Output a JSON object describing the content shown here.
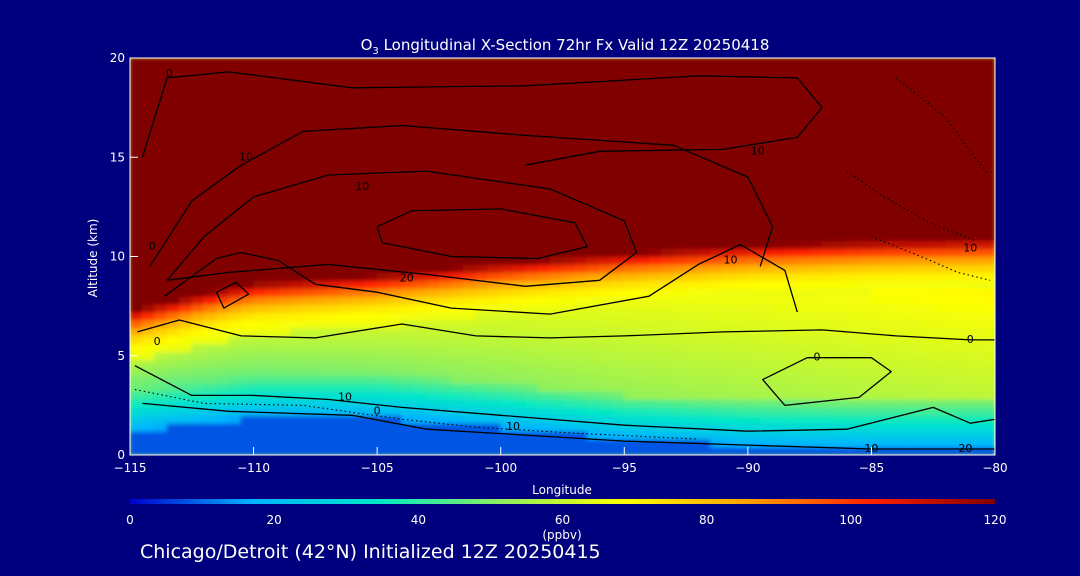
{
  "chart_data": {
    "type": "heatmap",
    "title_species": "O",
    "title_subscript": "3",
    "title_rest": " Longitudinal X-Section 72hr  Fx Valid 12Z 20250418",
    "xlabel": "Longitude",
    "ylabel": "Altitude (km)",
    "xlim": [
      -115,
      -80
    ],
    "ylim": [
      0,
      20
    ],
    "x_ticks": [
      "−115",
      "−110",
      "−105",
      "−100",
      "−95",
      "−90",
      "−85",
      "−80"
    ],
    "y_ticks": [
      "0",
      "5",
      "10",
      "15",
      "20"
    ],
    "colorbar": {
      "min": 0,
      "max": 120,
      "ticks": [
        "0",
        "20",
        "40",
        "60",
        "80",
        "100",
        "120"
      ],
      "unit": "(ppbv)",
      "colors": [
        "#0000cc",
        "#00b4ff",
        "#00e8c8",
        "#8cf060",
        "#ffff00",
        "#ffa000",
        "#ff2000",
        "#800000"
      ]
    },
    "ozone_field": {
      "description_free": true,
      "tropopause_km": [
        [
          -115,
          7.5
        ],
        [
          -112,
          8.4
        ],
        [
          -110,
          8.9
        ],
        [
          -105,
          9.3
        ],
        [
          -100,
          9.9
        ],
        [
          -95,
          10.4
        ],
        [
          -90,
          10.8
        ],
        [
          -85,
          11.0
        ],
        [
          -80,
          11.1
        ]
      ],
      "boundary_layer_top_km": [
        [
          -115,
          1.2
        ],
        [
          -110,
          1.9
        ],
        [
          -105,
          1.9
        ],
        [
          -100,
          1.4
        ],
        [
          -95,
          0.8
        ],
        [
          -90,
          0.5
        ],
        [
          -85,
          0.4
        ],
        [
          -80,
          0.4
        ]
      ],
      "background_ppbv": 60,
      "stratosphere_ppbv": 130
    },
    "contour_labels": [
      {
        "text": "0",
        "x": -113.4,
        "y": 19.2
      },
      {
        "text": "10",
        "x": -110.3,
        "y": 15.0
      },
      {
        "text": "10",
        "x": -105.6,
        "y": 13.5
      },
      {
        "text": "10",
        "x": -89.6,
        "y": 15.3
      },
      {
        "text": "0",
        "x": -114.1,
        "y": 10.5
      },
      {
        "text": "0",
        "x": -113.9,
        "y": 5.7
      },
      {
        "text": "20",
        "x": -103.8,
        "y": 8.9
      },
      {
        "text": "10",
        "x": -90.7,
        "y": 9.8
      },
      {
        "text": "10",
        "x": -81.0,
        "y": 10.4
      },
      {
        "text": "0",
        "x": -87.2,
        "y": 4.9
      },
      {
        "text": "0",
        "x": -81.0,
        "y": 5.8
      },
      {
        "text": "10",
        "x": -106.3,
        "y": 2.9
      },
      {
        "text": "0",
        "x": -105.0,
        "y": 2.2
      },
      {
        "text": "10",
        "x": -99.5,
        "y": 1.4
      },
      {
        "text": "10",
        "x": -85.0,
        "y": 0.3
      },
      {
        "text": "20",
        "x": -81.2,
        "y": 0.3
      }
    ]
  },
  "footer": "Chicago/Detroit (42°N) Initialized 12Z 20250415"
}
